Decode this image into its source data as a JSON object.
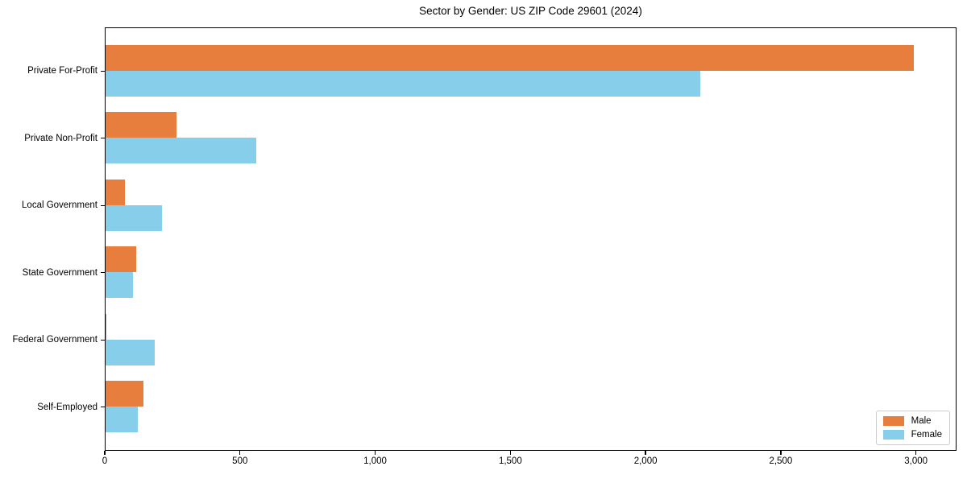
{
  "chart_data": {
    "type": "bar",
    "orientation": "horizontal",
    "title": "Sector by Gender: US ZIP Code 29601 (2024)",
    "categories": [
      "Private For-Profit",
      "Private Non-Profit",
      "Local Government",
      "State Government",
      "Federal Government",
      "Self-Employed"
    ],
    "series": [
      {
        "name": "Male",
        "color": "#e87e3d",
        "values": [
          2990,
          263,
          72,
          114,
          4,
          141
        ]
      },
      {
        "name": "Female",
        "color": "#87ceeb",
        "values": [
          2200,
          557,
          209,
          102,
          183,
          120
        ]
      }
    ],
    "xlim": [
      0,
      3150
    ],
    "xticks": [
      {
        "value": 0,
        "label": "0"
      },
      {
        "value": 500,
        "label": "500"
      },
      {
        "value": 1000,
        "label": "1,000"
      },
      {
        "value": 1500,
        "label": "1,500"
      },
      {
        "value": 2000,
        "label": "2,000"
      },
      {
        "value": 2500,
        "label": "2,500"
      },
      {
        "value": 3000,
        "label": "3,000"
      }
    ],
    "grid": false,
    "legend_position": "lower right",
    "background_color": "#ffffff",
    "axis_color": "#000000"
  }
}
